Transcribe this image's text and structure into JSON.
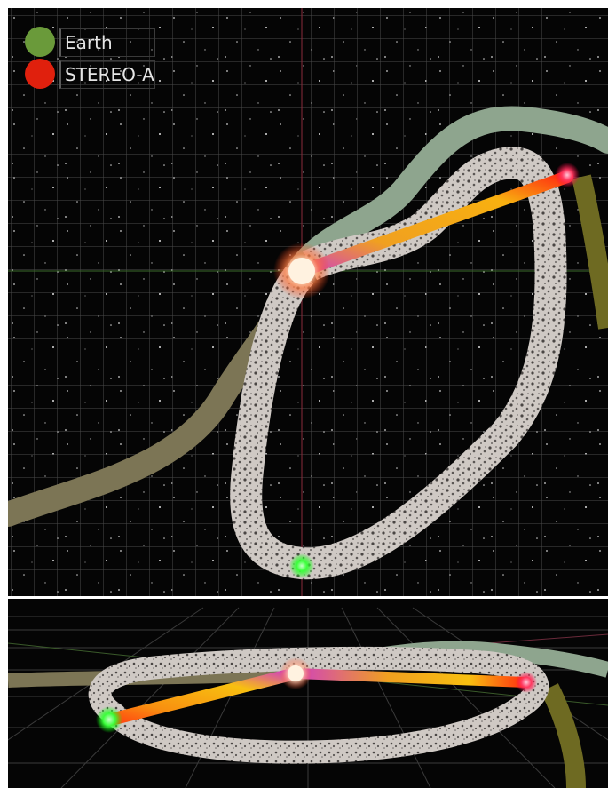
{
  "legend": {
    "items": [
      {
        "label": "Earth",
        "color": "#6a9a3a"
      },
      {
        "label": "STEREO-A",
        "color": "#e0200d"
      }
    ]
  },
  "scene": {
    "background": "#050505",
    "grid_color": "#4a4a4a",
    "sun_color": "#fff2e0",
    "earth_marker_color": "#3cff3c",
    "stereo_marker_color": "#ff3c64",
    "orbit_band_color": "#c9c3bf",
    "earth_trail_color": "#7c7555",
    "stereo_trail_color": "#8ea58e"
  }
}
